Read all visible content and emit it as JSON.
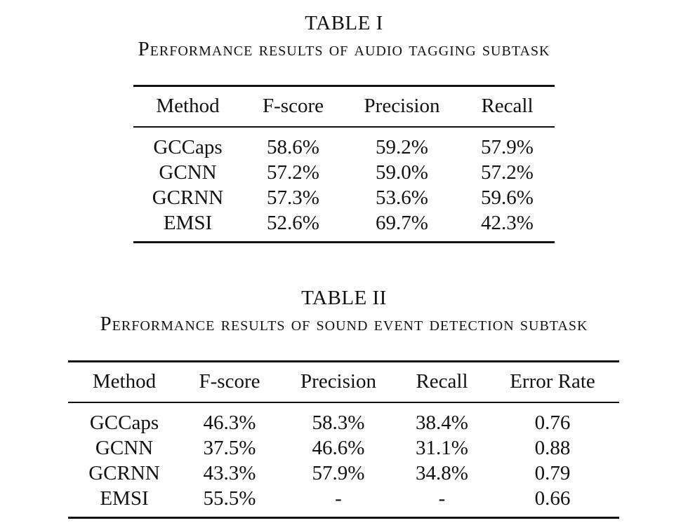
{
  "table1": {
    "label": "TABLE I",
    "title": "Performance results of audio tagging subtask",
    "headers": [
      "Method",
      "F-score",
      "Precision",
      "Recall"
    ],
    "rows": [
      [
        "GCCaps",
        "58.6%",
        "59.2%",
        "57.9%"
      ],
      [
        "GCNN",
        "57.2%",
        "59.0%",
        "57.2%"
      ],
      [
        "GCRNN",
        "57.3%",
        "53.6%",
        "59.6%"
      ],
      [
        "EMSI",
        "52.6%",
        "69.7%",
        "42.3%"
      ]
    ]
  },
  "table2": {
    "label": "TABLE II",
    "title": "Performance results of sound event detection subtask",
    "headers": [
      "Method",
      "F-score",
      "Precision",
      "Recall",
      "Error Rate"
    ],
    "rows": [
      [
        "GCCaps",
        "46.3%",
        "58.3%",
        "38.4%",
        "0.76"
      ],
      [
        "GCNN",
        "37.5%",
        "46.6%",
        "31.1%",
        "0.88"
      ],
      [
        "GCRNN",
        "43.3%",
        "57.9%",
        "34.8%",
        "0.79"
      ],
      [
        "EMSI",
        "55.5%",
        "-",
        "-",
        "0.66"
      ]
    ]
  }
}
